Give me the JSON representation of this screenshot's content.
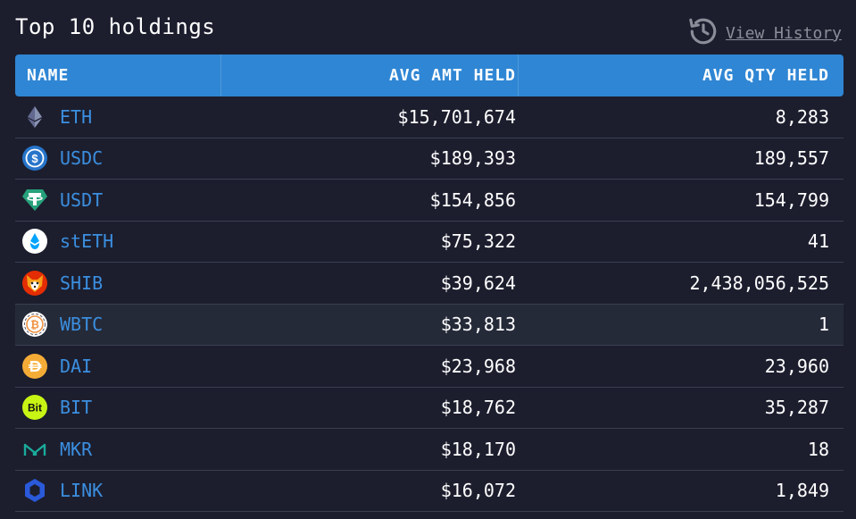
{
  "header": {
    "title": "Top 10 holdings",
    "history_label": "View History"
  },
  "table": {
    "columns": [
      "NAME",
      "AVG AMT HELD",
      "AVG QTY HELD"
    ],
    "rows": [
      {
        "symbol": "ETH",
        "amount": "$15,701,674",
        "quantity": "8,283",
        "icon": "ethereum-icon"
      },
      {
        "symbol": "USDC",
        "amount": "$189,393",
        "quantity": "189,557",
        "icon": "usdc-icon"
      },
      {
        "symbol": "USDT",
        "amount": "$154,856",
        "quantity": "154,799",
        "icon": "tether-icon"
      },
      {
        "symbol": "stETH",
        "amount": "$75,322",
        "quantity": "41",
        "icon": "steth-icon"
      },
      {
        "symbol": "SHIB",
        "amount": "$39,624",
        "quantity": "2,438,056,525",
        "icon": "shiba-icon"
      },
      {
        "symbol": "WBTC",
        "amount": "$33,813",
        "quantity": "1",
        "icon": "wbtc-icon"
      },
      {
        "symbol": "DAI",
        "amount": "$23,968",
        "quantity": "23,960",
        "icon": "dai-icon"
      },
      {
        "symbol": "BIT",
        "amount": "$18,762",
        "quantity": "35,287",
        "icon": "bitdao-icon"
      },
      {
        "symbol": "MKR",
        "amount": "$18,170",
        "quantity": "18",
        "icon": "maker-icon"
      },
      {
        "symbol": "LINK",
        "amount": "$16,072",
        "quantity": "1,849",
        "icon": "chainlink-icon"
      }
    ]
  },
  "colors": {
    "background": "#1c1e2e",
    "header_bg": "#2f86d4",
    "link": "#3b8fe0",
    "muted": "#8b8e99"
  }
}
